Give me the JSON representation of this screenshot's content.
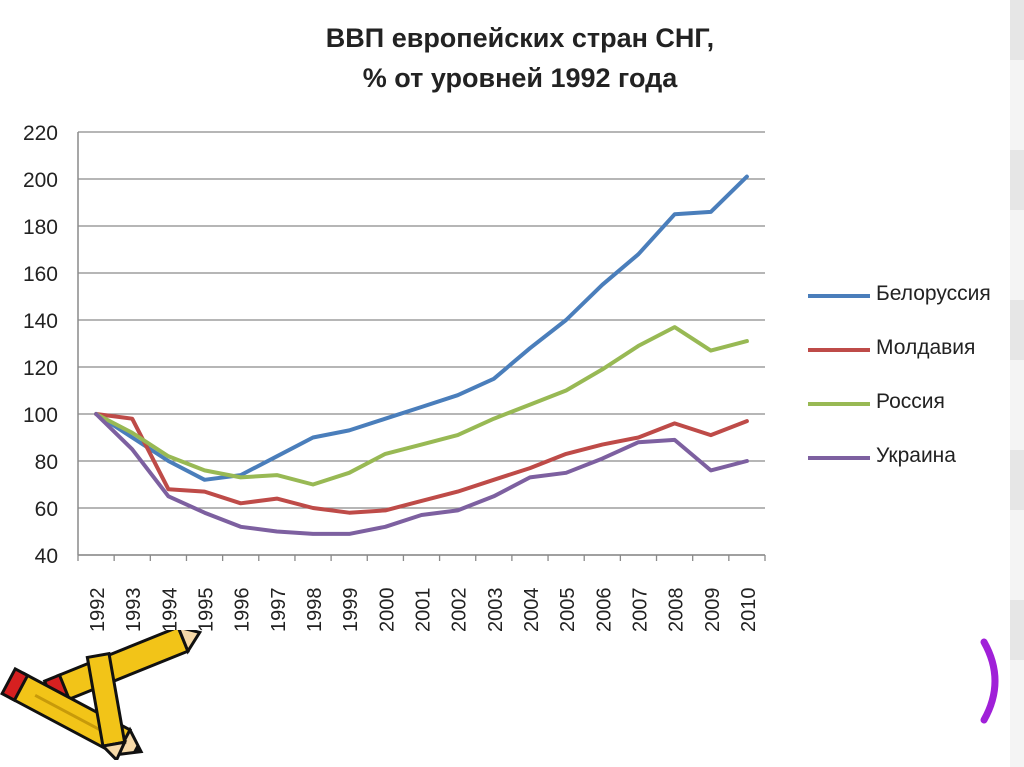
{
  "title_line1": "ВВП европейских стран СНГ,",
  "title_line2": "% от уровней 1992 года",
  "chart_data": {
    "type": "line",
    "title": "ВВП европейских стран СНГ, % от уровней 1992 года",
    "x": [
      "1992",
      "1993",
      "1994",
      "1995",
      "1996",
      "1997",
      "1998",
      "1999",
      "2000",
      "2001",
      "2002",
      "2003",
      "2004",
      "2005",
      "2006",
      "2007",
      "2008",
      "2009",
      "2010"
    ],
    "ylim": [
      40,
      220
    ],
    "yticks": [
      40,
      60,
      80,
      100,
      120,
      140,
      160,
      180,
      200,
      220
    ],
    "grid": true,
    "legend_position": "right",
    "series": [
      {
        "name": "Белоруссия",
        "color": "#4a7ebb",
        "values": [
          100,
          90,
          80,
          72,
          74,
          82,
          90,
          93,
          98,
          103,
          108,
          115,
          128,
          140,
          155,
          168,
          185,
          186,
          201
        ]
      },
      {
        "name": "Молдавия",
        "color": "#be4b48",
        "values": [
          100,
          98,
          68,
          67,
          62,
          64,
          60,
          58,
          59,
          63,
          67,
          72,
          77,
          83,
          87,
          90,
          96,
          91,
          97
        ]
      },
      {
        "name": "Россия",
        "color": "#98b954",
        "values": [
          100,
          92,
          82,
          76,
          73,
          74,
          70,
          75,
          83,
          87,
          91,
          98,
          104,
          110,
          119,
          129,
          137,
          127,
          131
        ]
      },
      {
        "name": "Украина",
        "color": "#7d60a0",
        "values": [
          100,
          85,
          65,
          58,
          52,
          50,
          49,
          49,
          52,
          57,
          59,
          65,
          73,
          75,
          81,
          88,
          89,
          76,
          80
        ]
      }
    ]
  }
}
